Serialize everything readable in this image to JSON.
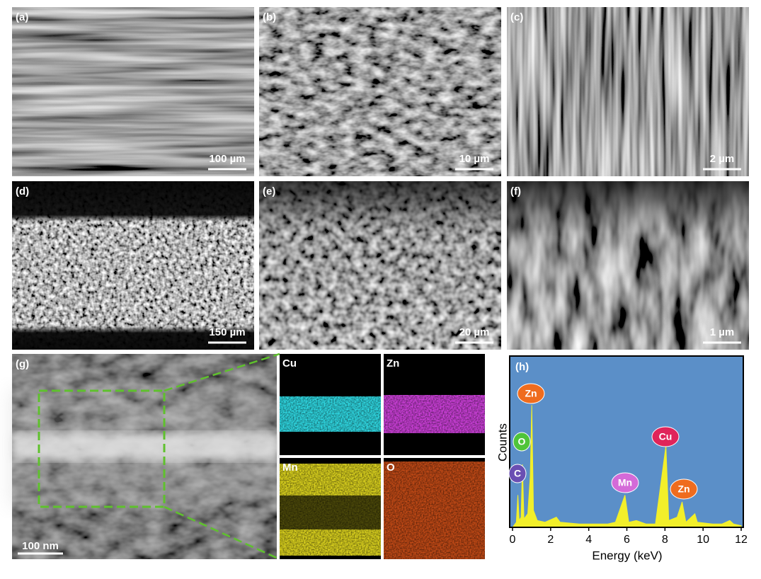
{
  "panels": [
    {
      "label": "(a)",
      "scale_bar": "100 µm"
    },
    {
      "label": "(b)",
      "scale_bar": "10 µm"
    },
    {
      "label": "(c)",
      "scale_bar": "2 µm"
    },
    {
      "label": "(d)",
      "scale_bar": "150 µm"
    },
    {
      "label": "(e)",
      "scale_bar": "20 µm"
    },
    {
      "label": "(f)",
      "scale_bar": "1 µm"
    },
    {
      "label": "(g)",
      "scale_bar": "100 nm"
    }
  ],
  "maps": [
    "Cu",
    "Zn",
    "Mn",
    "O"
  ],
  "chart_data": {
    "type": "area",
    "label": "(h)",
    "xlabel": "Energy (keV)",
    "ylabel": "Counts",
    "background": "#5b8fc8",
    "color": "#f2ef2a",
    "x": [
      0,
      0.2,
      0.28,
      0.35,
      0.45,
      0.52,
      0.6,
      0.8,
      0.93,
      1.01,
      1.1,
      1.3,
      1.7,
      2.3,
      2.5,
      3.5,
      5,
      5.4,
      5.9,
      6.1,
      6.5,
      7,
      7.5,
      8.05,
      8.2,
      8.64,
      8.9,
      9.1,
      9.57,
      9.7,
      10.5,
      11,
      11.4,
      11.6,
      12
    ],
    "values": [
      0,
      3,
      19,
      4,
      6,
      37,
      5,
      8,
      30,
      72,
      10,
      4,
      3,
      6,
      3,
      2,
      2,
      3,
      19,
      3,
      4,
      2,
      2,
      48,
      4,
      6,
      15,
      3,
      8,
      3,
      2,
      2,
      4,
      2,
      1
    ],
    "xlim": [
      0,
      12
    ],
    "ylim": [
      0,
      100
    ],
    "xticks": [
      0,
      2,
      4,
      6,
      8,
      10,
      12
    ],
    "annotations": [
      {
        "label": "Zn",
        "color": "#ef6c1e"
      },
      {
        "label": "O",
        "color": "#4fc43a"
      },
      {
        "label": "C",
        "color": "#6a4fb3"
      },
      {
        "label": "Mn",
        "color": "#d46ad8"
      },
      {
        "label": "Cu",
        "color": "#e0245a"
      },
      {
        "label": "Zn",
        "color": "#ef6c1e"
      }
    ]
  }
}
